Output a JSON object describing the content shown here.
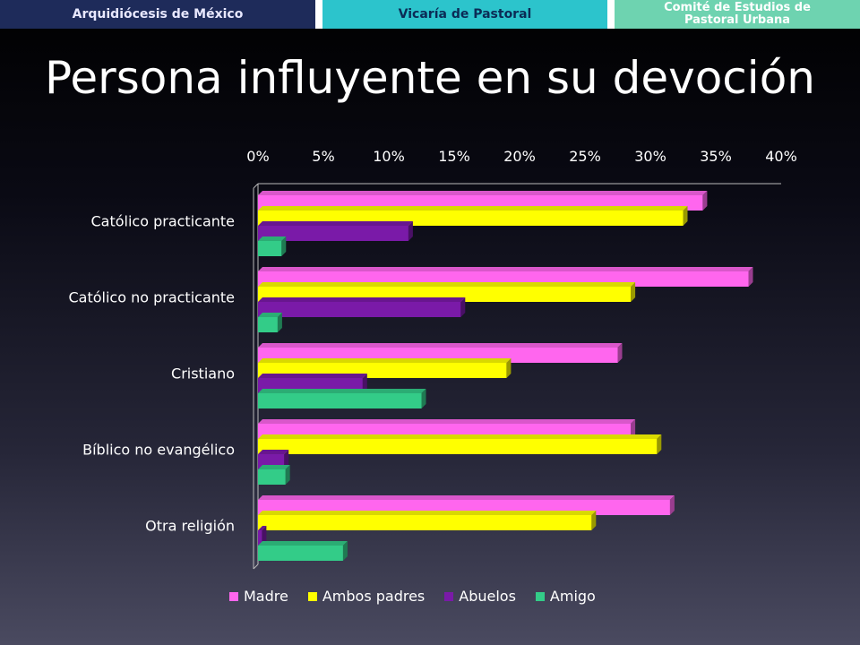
{
  "header": {
    "tab1": "Arquidiócesis de México",
    "tab2": "Vicaría de Pastoral",
    "tab3_line1": "Comité de Estudios de",
    "tab3_line2": "Pastoral Urbana"
  },
  "chart_data": {
    "type": "bar",
    "orientation": "horizontal",
    "title": "Persona influyente en su devoción",
    "categories": [
      "Católico practicante",
      "Católico no practicante",
      "Cristiano",
      "Bíblico no evangélico",
      "Otra religión"
    ],
    "series": [
      {
        "name": "Madre",
        "color": "#ff66ee",
        "values": [
          34,
          37.5,
          27.5,
          28.5,
          31.5
        ]
      },
      {
        "name": "Ambos padres",
        "color": "#ffff00",
        "values": [
          32.5,
          28.5,
          19,
          30.5,
          25.5
        ]
      },
      {
        "name": "Abuelos",
        "color": "#7a1aa8",
        "values": [
          11.5,
          15.5,
          8,
          2,
          0.3
        ]
      },
      {
        "name": "Amigo",
        "color": "#33cc88",
        "values": [
          1.8,
          1.5,
          12.5,
          2.1,
          6.5
        ]
      }
    ],
    "xlim": [
      0,
      40
    ],
    "xticks": [
      "0%",
      "5%",
      "10%",
      "15%",
      "20%",
      "25%",
      "30%",
      "35%",
      "40%"
    ],
    "legend_position": "bottom",
    "grid": false
  }
}
